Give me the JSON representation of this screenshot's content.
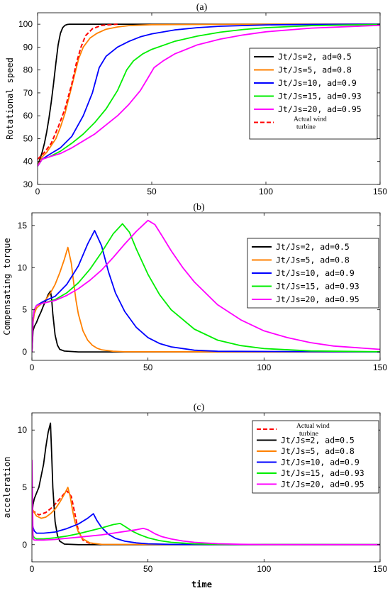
{
  "chart_data": [
    {
      "type": "line",
      "title": "(a)",
      "xlabel": "",
      "ylabel": "Rotational speed",
      "xlim": [
        0,
        150
      ],
      "ylim": [
        30,
        105
      ],
      "xticks": [
        0,
        50,
        100,
        150
      ],
      "yticks": [
        30,
        40,
        50,
        60,
        70,
        80,
        90,
        100
      ],
      "grid": false,
      "legend_position": "right",
      "series": [
        {
          "name": "Jt/Js=2, ad=0.5",
          "color": "#000000",
          "dash": false,
          "x": [
            0,
            1,
            2,
            3,
            4,
            5,
            6,
            7,
            8,
            9,
            10,
            11,
            12,
            13,
            14,
            20,
            50,
            100,
            150
          ],
          "y": [
            38,
            41,
            44,
            48,
            53,
            59,
            66,
            74,
            83,
            91,
            96,
            98.5,
            99.5,
            99.9,
            100,
            100,
            100,
            100,
            100
          ]
        },
        {
          "name": "Jt/Js=5, ad=0.8",
          "color": "#FF8000",
          "dash": false,
          "x": [
            0,
            2,
            4,
            6,
            8,
            10,
            12,
            14,
            16,
            18,
            20,
            23,
            26,
            30,
            35,
            40,
            50,
            100,
            150
          ],
          "y": [
            38,
            42,
            44,
            47,
            50,
            55,
            61,
            69,
            77,
            85,
            90,
            94,
            96,
            97.8,
            98.8,
            99.4,
            99.8,
            100,
            100
          ]
        },
        {
          "name": "Jt/Js=10, ad=0.9",
          "color": "#0000FF",
          "dash": false,
          "x": [
            0,
            2,
            5,
            10,
            15,
            20,
            24,
            27,
            30,
            35,
            40,
            45,
            50,
            60,
            70,
            80,
            100,
            120,
            150
          ],
          "y": [
            38,
            41,
            43,
            46,
            51,
            60,
            70,
            81,
            86,
            90,
            92.5,
            94.5,
            95.8,
            97.5,
            98.5,
            99.1,
            99.7,
            99.9,
            100
          ]
        },
        {
          "name": "Jt/Js=15, ad=0.93",
          "color": "#00EE00",
          "dash": false,
          "x": [
            0,
            2,
            5,
            10,
            15,
            20,
            25,
            30,
            35,
            39,
            42,
            46,
            50,
            60,
            70,
            80,
            90,
            100,
            120,
            150
          ],
          "y": [
            38,
            41,
            42,
            44.5,
            48,
            52,
            57,
            63,
            71,
            80,
            84,
            87,
            89,
            92.5,
            94.8,
            96.5,
            97.7,
            98.5,
            99.4,
            99.9
          ]
        },
        {
          "name": "Jt/Js=20, ad=0.95",
          "color": "#FF00FF",
          "dash": false,
          "x": [
            0,
            2,
            5,
            10,
            15,
            20,
            25,
            30,
            35,
            40,
            45,
            48,
            51,
            55,
            60,
            70,
            80,
            90,
            100,
            120,
            150
          ],
          "y": [
            38,
            41,
            42,
            43.5,
            46,
            49,
            52,
            56,
            60,
            65,
            71,
            76,
            81,
            84,
            87,
            91,
            93.5,
            95.3,
            96.7,
            98.3,
            99.5
          ]
        },
        {
          "name": "Actual wind turbine",
          "color": "#FF0000",
          "dash": true,
          "x": [
            0,
            3,
            6,
            9,
            12,
            15,
            17,
            19,
            21,
            24,
            28,
            35
          ],
          "y": [
            41,
            44,
            48,
            55,
            63,
            74,
            83,
            90,
            95,
            98,
            99.5,
            100
          ]
        }
      ]
    },
    {
      "type": "line",
      "title": "(b)",
      "xlabel": "",
      "ylabel": "Compensating torque",
      "xlim": [
        0,
        150
      ],
      "ylim": [
        -1,
        16.5
      ],
      "xticks": [
        0,
        50,
        100,
        150
      ],
      "yticks": [
        0,
        5,
        10,
        15
      ],
      "grid": false,
      "legend_position": "top-right",
      "series": [
        {
          "name": "Jt/Js=2, ad=0.5",
          "color": "#000000",
          "dash": false,
          "x": [
            0,
            0.5,
            1,
            2,
            3,
            4,
            5,
            6,
            7,
            8,
            8.5,
            9,
            10,
            11,
            12,
            14,
            20,
            50,
            100,
            150
          ],
          "y": [
            0,
            2.5,
            3,
            3.5,
            4.2,
            4.8,
            5.5,
            6.1,
            6.8,
            7.2,
            6.3,
            4.5,
            2,
            0.8,
            0.3,
            0.1,
            0,
            0,
            0,
            0
          ]
        },
        {
          "name": "Jt/Js=5, ad=0.8",
          "color": "#FF8000",
          "dash": false,
          "x": [
            0,
            0.5,
            1,
            2,
            4,
            6,
            8,
            10,
            12,
            14,
            15.5,
            17,
            18,
            19,
            20,
            22,
            24,
            26,
            28,
            30,
            35,
            40,
            150
          ],
          "y": [
            0,
            3.5,
            4.5,
            5.2,
            5.7,
            6.2,
            7,
            8,
            9.4,
            11,
            12.4,
            10.5,
            8.2,
            6.1,
            4.5,
            2.5,
            1.4,
            0.8,
            0.45,
            0.25,
            0.08,
            0.02,
            0
          ]
        },
        {
          "name": "Jt/Js=10, ad=0.9",
          "color": "#0000FF",
          "dash": false,
          "x": [
            0,
            0.5,
            1,
            2,
            5,
            10,
            15,
            20,
            24,
            27,
            30,
            33,
            36,
            40,
            45,
            50,
            55,
            60,
            70,
            80,
            150
          ],
          "y": [
            0,
            4,
            5,
            5.5,
            6,
            6.6,
            8,
            10.2,
            12.8,
            14.4,
            12.6,
            9.5,
            7,
            4.8,
            2.9,
            1.7,
            1,
            0.6,
            0.2,
            0.08,
            0
          ]
        },
        {
          "name": "Jt/Js=15, ad=0.93",
          "color": "#00EE00",
          "dash": false,
          "x": [
            0,
            0.5,
            1,
            2,
            5,
            10,
            15,
            20,
            25,
            30,
            35,
            39,
            42,
            45,
            50,
            55,
            60,
            70,
            80,
            90,
            100,
            120,
            150
          ],
          "y": [
            0,
            4,
            5,
            5.5,
            5.8,
            6.2,
            7,
            8.2,
            9.8,
            11.8,
            14,
            15.2,
            14.2,
            12.2,
            9.2,
            6.8,
            5,
            2.7,
            1.4,
            0.75,
            0.4,
            0.12,
            0.02
          ]
        },
        {
          "name": "Jt/Js=20, ad=0.95",
          "color": "#FF00FF",
          "dash": false,
          "x": [
            0,
            0.5,
            1,
            2,
            5,
            10,
            15,
            20,
            25,
            30,
            35,
            40,
            45,
            50,
            53,
            56,
            60,
            65,
            70,
            80,
            90,
            100,
            110,
            120,
            130,
            150
          ],
          "y": [
            0,
            4,
            5,
            5.5,
            5.8,
            6.1,
            6.7,
            7.5,
            8.5,
            9.7,
            11.2,
            12.8,
            14.3,
            15.6,
            15.1,
            13.8,
            12,
            10,
            8.3,
            5.6,
            3.8,
            2.5,
            1.7,
            1.1,
            0.7,
            0.3
          ]
        }
      ]
    },
    {
      "type": "line",
      "title": "(c)",
      "xlabel": "time",
      "ylabel": "acceleration",
      "xlim": [
        0,
        150
      ],
      "ylim": [
        -1.5,
        11.5
      ],
      "xticks": [
        0,
        50,
        100,
        150
      ],
      "yticks": [
        0,
        5,
        10
      ],
      "grid": false,
      "legend_position": "top-right",
      "series": [
        {
          "name": "Actual wind turbine",
          "color": "#FF0000",
          "dash": true,
          "x": [
            0,
            3,
            6,
            9,
            12,
            15,
            17,
            18.5,
            20,
            22,
            25,
            30
          ],
          "y": [
            3,
            2.6,
            2.8,
            3.3,
            4,
            4.7,
            4.2,
            2.7,
            1.2,
            0.4,
            0.1,
            0
          ]
        },
        {
          "name": "Jt/Js=2, ad=0.5",
          "color": "#000000",
          "dash": false,
          "x": [
            0,
            0.5,
            1,
            2,
            3,
            4,
            5,
            6,
            7,
            8,
            8.5,
            9,
            10,
            11,
            12,
            14,
            20,
            150
          ],
          "y": [
            2.5,
            3.5,
            4,
            4.5,
            5,
            6,
            7,
            8.5,
            9.8,
            10.6,
            8,
            5,
            2,
            0.8,
            0.3,
            0.05,
            0,
            0
          ]
        },
        {
          "name": "Jt/Js=5, ad=0.8",
          "color": "#FF8000",
          "dash": false,
          "x": [
            0,
            0.5,
            1,
            2,
            4,
            6,
            8,
            10,
            12,
            14,
            15.5,
            16.5,
            17.5,
            18.5,
            20,
            22,
            25,
            30,
            150
          ],
          "y": [
            2,
            3,
            2.8,
            2.5,
            2.3,
            2.4,
            2.7,
            3.1,
            3.7,
            4.4,
            5,
            4.2,
            3,
            2,
            1.1,
            0.5,
            0.15,
            0.02,
            0
          ]
        },
        {
          "name": "Jt/Js=10, ad=0.9",
          "color": "#0000FF",
          "dash": false,
          "x": [
            0,
            0.5,
            1,
            2,
            5,
            10,
            15,
            20,
            24,
            26.5,
            28,
            30,
            33,
            36,
            40,
            45,
            50,
            60,
            150
          ],
          "y": [
            2,
            1.5,
            1.2,
            1,
            1,
            1.1,
            1.4,
            1.8,
            2.3,
            2.7,
            2.1,
            1.5,
            0.9,
            0.55,
            0.3,
            0.15,
            0.07,
            0.02,
            0
          ]
        },
        {
          "name": "Jt/Js=15, ad=0.93",
          "color": "#00EE00",
          "dash": false,
          "x": [
            0,
            0.5,
            1,
            2,
            5,
            10,
            15,
            20,
            25,
            30,
            35,
            38,
            40,
            43,
            46,
            50,
            55,
            60,
            70,
            80,
            150
          ],
          "y": [
            1.5,
            0.8,
            0.6,
            0.5,
            0.5,
            0.6,
            0.75,
            0.95,
            1.2,
            1.45,
            1.75,
            1.85,
            1.6,
            1.2,
            0.9,
            0.6,
            0.35,
            0.2,
            0.07,
            0.02,
            0
          ]
        },
        {
          "name": "Jt/Js=20, ad=0.95",
          "color": "#FF00FF",
          "dash": false,
          "x": [
            0,
            0.5,
            1,
            2,
            5,
            10,
            15,
            20,
            25,
            30,
            35,
            40,
            45,
            48,
            50,
            53,
            56,
            60,
            65,
            70,
            80,
            90,
            100,
            150
          ],
          "y": [
            7.4,
            0.5,
            0.4,
            0.4,
            0.4,
            0.45,
            0.55,
            0.65,
            0.75,
            0.85,
            1,
            1.15,
            1.3,
            1.42,
            1.3,
            0.95,
            0.7,
            0.5,
            0.32,
            0.2,
            0.08,
            0.03,
            0.01,
            0
          ]
        }
      ]
    }
  ]
}
